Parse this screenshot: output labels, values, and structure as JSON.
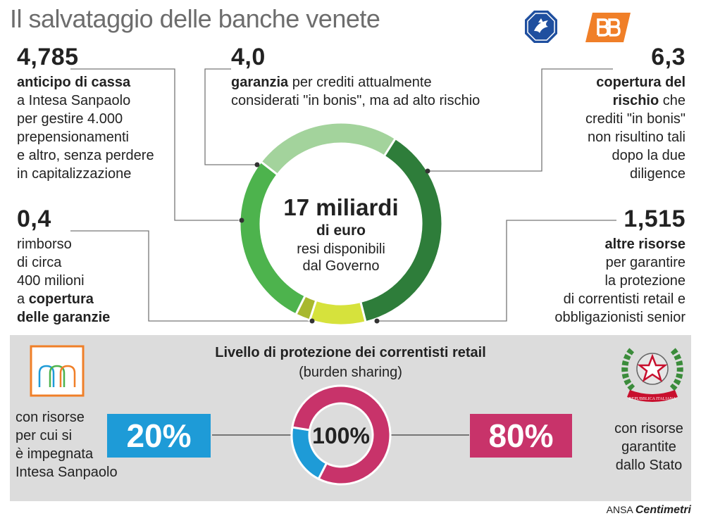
{
  "title": "Il salvataggio delle banche venete",
  "top_items": {
    "anticipo": {
      "value": "4,785",
      "bold": "anticipo di cassa",
      "lines": [
        "a Intesa Sanpaolo",
        "per gestire 4.000",
        "prepensionamenti",
        "e altro, senza perdere",
        "in capitalizzazione"
      ]
    },
    "garanzia": {
      "value": "4,0",
      "bold": "garanzia",
      "line1_rest": " per crediti attualmente",
      "line2": "considerati \"in bonis\", ma ad alto rischio"
    },
    "copertura": {
      "value": "6,3",
      "bold_lines": [
        "copertura del",
        "rischio"
      ],
      "line2_rest": " che",
      "lines": [
        "crediti \"in bonis\"",
        "non risultino tali",
        "dopo la due",
        "diligence"
      ]
    },
    "rimborso": {
      "value": "0,4",
      "lines": [
        "rimborso",
        "di circa",
        "400 milioni"
      ],
      "line4_pre": "a ",
      "line4_bold": "copertura",
      "line5_bold": "delle garanzie"
    },
    "altre": {
      "value": "1,515",
      "bold": "altre risorse",
      "lines": [
        "per garantire",
        "la protezione",
        "di correntisti retail e",
        "obbligazionisti senior"
      ]
    }
  },
  "center_label": {
    "big": "17 miliardi",
    "sub": "di euro",
    "line3": "resi disponibili",
    "line4": "dal Governo"
  },
  "chart_data": [
    {
      "type": "pie",
      "title": "17 miliardi di euro",
      "categories": [
        "garanzia",
        "copertura del rischio",
        "altre risorse",
        "rimborso",
        "anticipo di cassa"
      ],
      "values": [
        4.0,
        6.3,
        1.515,
        0.4,
        4.785
      ],
      "colors": [
        "#a3d39c",
        "#2e7d3a",
        "#d6e23c",
        "#a8b82e",
        "#4db34d"
      ]
    },
    {
      "type": "pie",
      "title": "Livello di protezione dei correntisti retail",
      "subtitle": "(burden sharing)",
      "center": "100%",
      "categories": [
        "Intesa Sanpaolo",
        "Stato"
      ],
      "values": [
        20,
        80
      ],
      "labels": [
        "20%",
        "80%"
      ],
      "colors": [
        "#1e9bd7",
        "#c8336a"
      ]
    }
  ],
  "bottom": {
    "title": "Livello di protezione dei correntisti retail",
    "subtitle": "(burden sharing)",
    "left_lines": [
      "con risorse",
      "per cui si",
      "è impegnata",
      "Intesa Sanpaolo"
    ],
    "right_lines": [
      "con risorse",
      "garantite",
      "dallo Stato"
    ],
    "emblem_ribbon": "REPUBBLICA ITALIANA"
  },
  "credit": {
    "ansa": "ANSA",
    "brand": "Centimetri"
  },
  "colors": {
    "blue": "#1e9bd7",
    "magenta": "#c8336a",
    "title_grey": "#6d6d6d",
    "orange": "#f07f28"
  }
}
